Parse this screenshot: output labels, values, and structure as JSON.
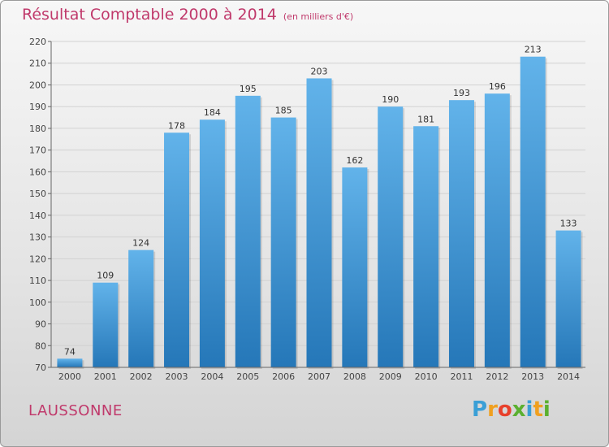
{
  "header": {
    "title": "Résultat Comptable 2000 à 2014",
    "subtitle": "(en milliers d'€)"
  },
  "footer": {
    "city": "LAUSSONNE",
    "logo": [
      "P",
      "r",
      "o",
      "x",
      "i",
      "t",
      "i"
    ]
  },
  "colors": {
    "bar_top": "#62b3ea",
    "bar_bottom": "#2577b8",
    "title": "#c0396b",
    "logo": [
      "#3a9fd6",
      "#f0a020",
      "#e8412c",
      "#5bb030",
      "#3a9fd6",
      "#f0a020",
      "#5bb030"
    ]
  },
  "chart_data": {
    "type": "bar",
    "title": "Résultat Comptable 2000 à 2014",
    "subtitle": "(en milliers d'€)",
    "categories": [
      "2000",
      "2001",
      "2002",
      "2003",
      "2004",
      "2005",
      "2006",
      "2007",
      "2008",
      "2009",
      "2010",
      "2011",
      "2012",
      "2013",
      "2014"
    ],
    "values": [
      74,
      109,
      124,
      178,
      184,
      195,
      185,
      203,
      162,
      190,
      181,
      193,
      196,
      213,
      133
    ],
    "ylim": [
      70,
      220
    ],
    "yticks": [
      70,
      80,
      90,
      100,
      110,
      120,
      130,
      140,
      150,
      160,
      170,
      180,
      190,
      200,
      210,
      220
    ],
    "grid": true
  }
}
